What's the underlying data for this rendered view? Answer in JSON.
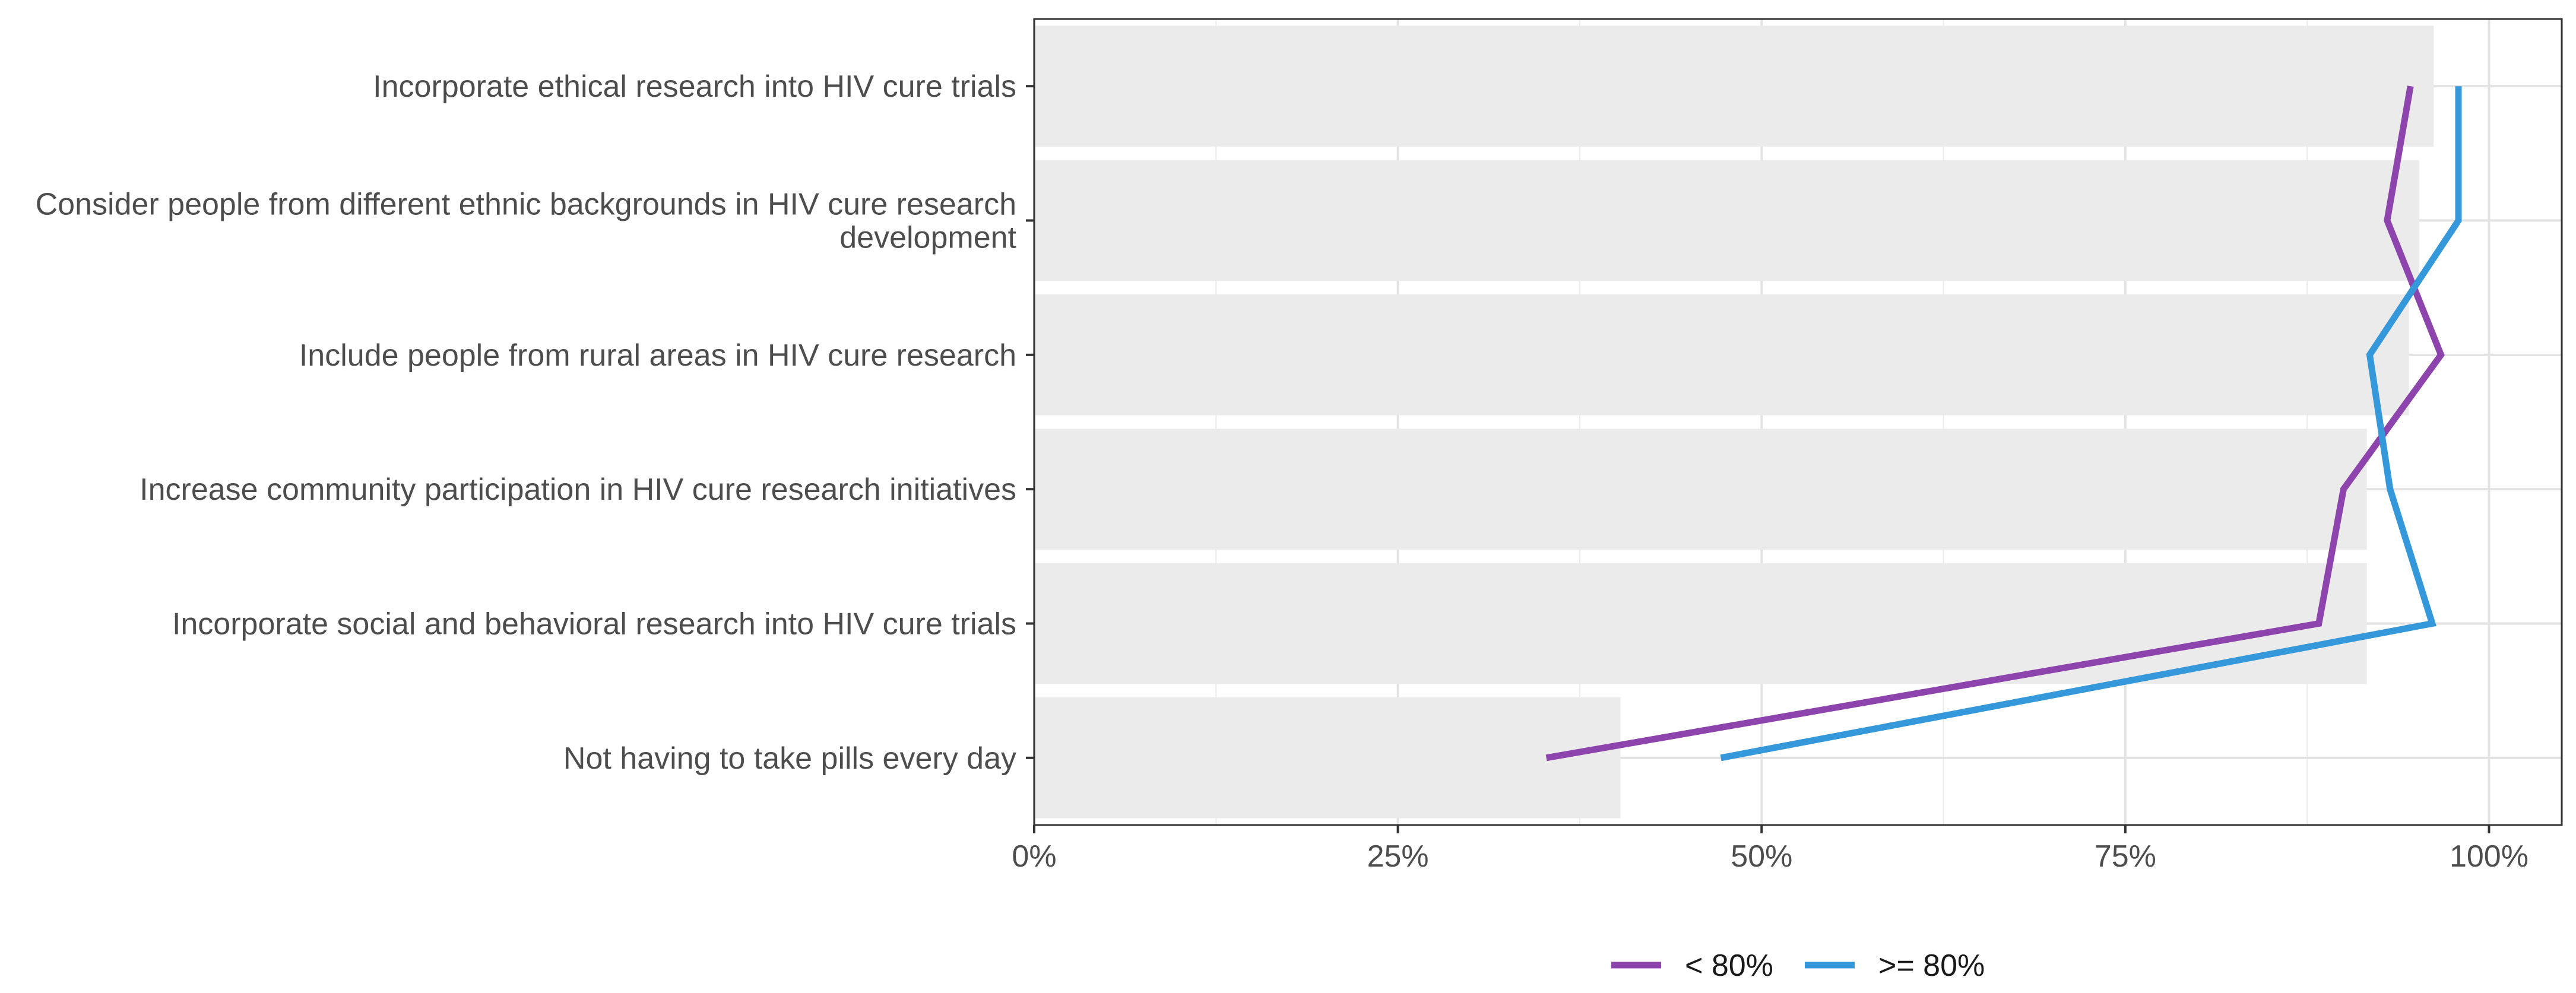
{
  "chart_data": {
    "type": "bar",
    "title": "",
    "xlabel": "",
    "ylabel": "",
    "xlim": [
      0,
      1.05
    ],
    "x_ticks": [
      0,
      0.25,
      0.5,
      0.75,
      1.0
    ],
    "x_tick_labels": [
      "0%",
      "25%",
      "50%",
      "75%",
      "100%"
    ],
    "grid": true,
    "legend_position": "bottom",
    "categories": [
      {
        "lines": [
          "Incorporate ethical research into HIV cure trials"
        ],
        "value": 0.962
      },
      {
        "lines": [
          "Consider people from different ethnic backgrounds in HIV cure research",
          "development"
        ],
        "value": 0.952
      },
      {
        "lines": [
          "Include people from rural areas in HIV cure research"
        ],
        "value": 0.945
      },
      {
        "lines": [
          "Increase community participation in HIV cure research initiatives"
        ],
        "value": 0.916
      },
      {
        "lines": [
          "Incorporate social and behavioral research into HIV cure trials"
        ],
        "value": 0.916
      },
      {
        "lines": [
          "Not having to take pills every day"
        ],
        "value": 0.403
      }
    ],
    "bar_color": "#ebebeb",
    "series": [
      {
        "name": "< 80%",
        "color": "#8e44ad",
        "values": [
          0.946,
          0.93,
          0.967,
          0.9,
          0.883,
          0.352
        ]
      },
      {
        "name": ">= 80%",
        "color": "#3498db",
        "values": [
          0.979,
          0.979,
          0.918,
          0.932,
          0.961,
          0.472
        ]
      }
    ]
  }
}
